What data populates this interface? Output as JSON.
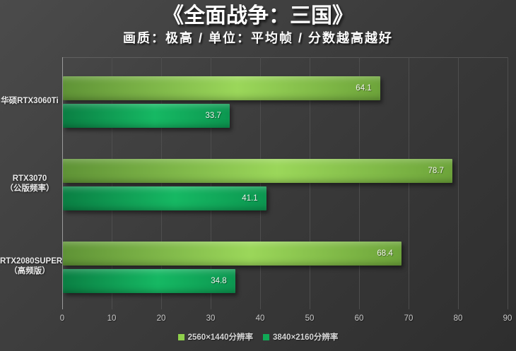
{
  "colors": {
    "background_light": "#4b4b4b",
    "background_dark": "#2e2e2e",
    "axis_line": "#9b9b9b",
    "gridline": "#4e4e4e",
    "tick_label": "#cacaca",
    "category_label": "#e9e9e9",
    "value_label": "#f1f2ee",
    "series1_accent": "#8cc63f",
    "series2_accent": "#00a651"
  },
  "chart_data": {
    "type": "bar",
    "orientation": "horizontal",
    "title": "《全面战争：三国》",
    "subtitle": "画质：极高 / 单位：平均帧 / 分数越高越好",
    "categories": [
      {
        "lines": [
          "华硕RTX3060Ti"
        ]
      },
      {
        "lines": [
          "RTX3070",
          "（公版频率）"
        ]
      },
      {
        "lines": [
          "RTX2080SUPER",
          "（高频版）"
        ]
      }
    ],
    "series": [
      {
        "name": "2560×1440分辨率",
        "values": [
          64.1,
          78.7,
          68.4
        ],
        "swatch": "#8fd04b",
        "gradient": [
          "#5f9336",
          "#9bd75a",
          "#6da43a"
        ]
      },
      {
        "name": "3840×2160分辨率",
        "values": [
          33.7,
          41.1,
          34.8
        ],
        "swatch": "#10a956",
        "gradient": [
          "#0a7f43",
          "#16b863",
          "#0c9750"
        ]
      }
    ],
    "xlim": [
      0,
      90
    ],
    "xticks": [
      0,
      10,
      20,
      30,
      40,
      50,
      60,
      70,
      80,
      90
    ],
    "grid": true,
    "legend_position": "bottom",
    "value_label_position": "inside-end"
  }
}
